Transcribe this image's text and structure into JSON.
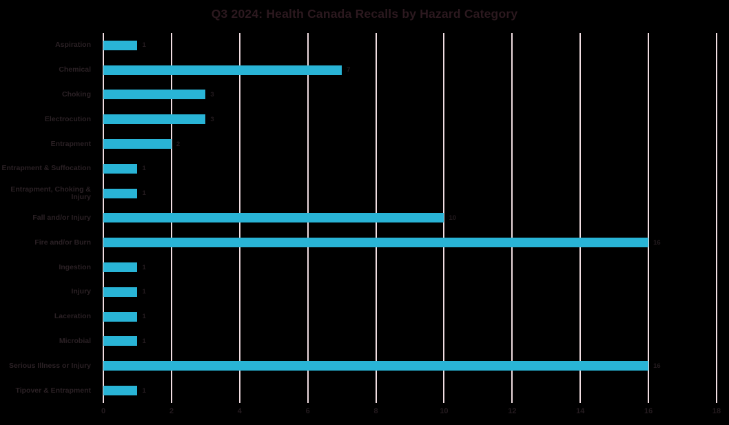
{
  "chart_data": {
    "type": "bar",
    "orientation": "horizontal",
    "title": "Q3 2024: Health Canada Recalls by Hazard Category",
    "categories": [
      "Aspiration",
      "Chemical",
      "Choking",
      "Electrocution",
      "Entrapment",
      "Entrapment & Suffocation",
      "Entrapment, Choking & Injury",
      "Fall and/or Injury",
      "Fire and/or Burn",
      "Ingestion",
      "Injury",
      "Laceration",
      "Microbial",
      "Serious Illness or Injury",
      "Tipover & Entrapment"
    ],
    "values": [
      1,
      7,
      3,
      3,
      2,
      1,
      1,
      10,
      16,
      1,
      1,
      1,
      1,
      16,
      1
    ],
    "value_labels": [
      "1",
      "7",
      "3",
      "3",
      "2",
      "1",
      "1",
      "10",
      "16",
      "1",
      "1",
      "1",
      "1",
      "16",
      "1"
    ],
    "xlabel": "",
    "ylabel": "",
    "xlim": [
      0,
      18
    ],
    "xticks": [
      0,
      2,
      4,
      6,
      8,
      10,
      12,
      14,
      16,
      18
    ],
    "grid": "vertical-only",
    "legend": "none",
    "colors": {
      "background": "#000000",
      "bar": "#29B4D6",
      "gridline": "#F0DDE1",
      "title_text": "#2C191F",
      "category_text": "#2B2125",
      "value_text": "#241B1F",
      "tick_text": "#241B1F"
    }
  }
}
